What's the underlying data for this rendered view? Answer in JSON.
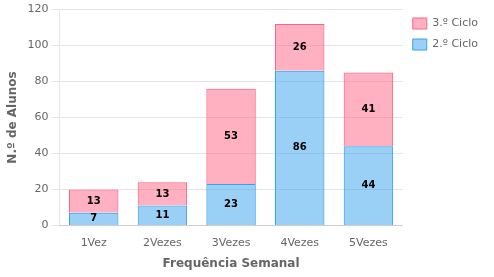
{
  "chart_data": {
    "type": "bar",
    "stacked": true,
    "categories": [
      "1Vez",
      "2Vezes",
      "3Vezes",
      "4Vezes",
      "5Vezes"
    ],
    "series": [
      {
        "name": "2.º Ciclo",
        "values": [
          7,
          11,
          23,
          86,
          44
        ]
      },
      {
        "name": "3.º Ciclo",
        "values": [
          13,
          13,
          53,
          26,
          41
        ]
      }
    ],
    "xlabel": "Frequência Semanal",
    "ylabel": "N.º de Alunos",
    "ylim": [
      0,
      120
    ],
    "yticks": [
      0,
      20,
      40,
      60,
      80,
      100,
      120
    ],
    "grid": true,
    "legend": "right",
    "data_labels": true
  }
}
